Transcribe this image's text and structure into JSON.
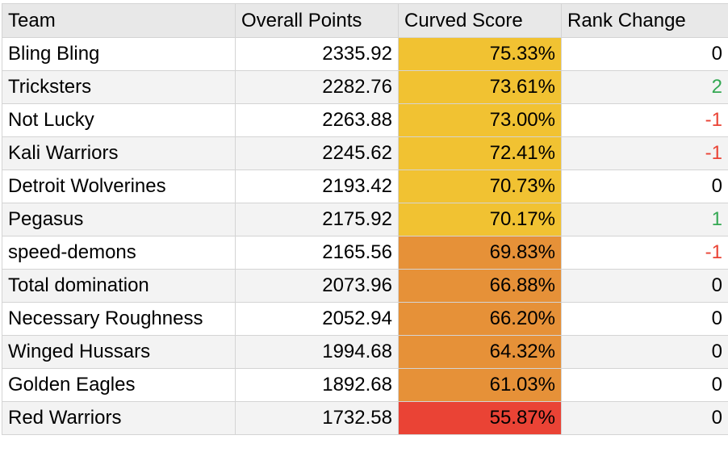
{
  "table": {
    "headers": [
      "Team",
      "Overall Points",
      "Curved Score",
      "Rank Change"
    ],
    "rows": [
      {
        "team": "Bling Bling",
        "points": "2335.92",
        "curved": "75.33%",
        "change": "0"
      },
      {
        "team": "Tricksters",
        "points": "2282.76",
        "curved": "73.61%",
        "change": "2"
      },
      {
        "team": "Not Lucky",
        "points": "2263.88",
        "curved": "73.00%",
        "change": "-1"
      },
      {
        "team": "Kali Warriors",
        "points": "2245.62",
        "curved": "72.41%",
        "change": "-1"
      },
      {
        "team": "Detroit Wolverines",
        "points": "2193.42",
        "curved": "70.73%",
        "change": "0"
      },
      {
        "team": "Pegasus",
        "points": "2175.92",
        "curved": "70.17%",
        "change": "1"
      },
      {
        "team": "speed-demons",
        "points": "2165.56",
        "curved": "69.83%",
        "change": "-1"
      },
      {
        "team": "Total domination",
        "points": "2073.96",
        "curved": "66.88%",
        "change": "0"
      },
      {
        "team": "Necessary Roughness",
        "points": "2052.94",
        "curved": "66.20%",
        "change": "0"
      },
      {
        "team": "Winged Hussars",
        "points": "1994.68",
        "curved": "64.32%",
        "change": "0"
      },
      {
        "team": "Golden Eagles",
        "points": "1892.68",
        "curved": "61.03%",
        "change": "0"
      },
      {
        "team": "Red Warriors",
        "points": "1732.58",
        "curved": "55.87%",
        "change": "0"
      }
    ]
  },
  "colors": {
    "tier_high": "#f1c232",
    "tier_mid": "#e69138",
    "tier_low": "#ea4335",
    "positive": "#34a853",
    "negative": "#ea4335"
  }
}
